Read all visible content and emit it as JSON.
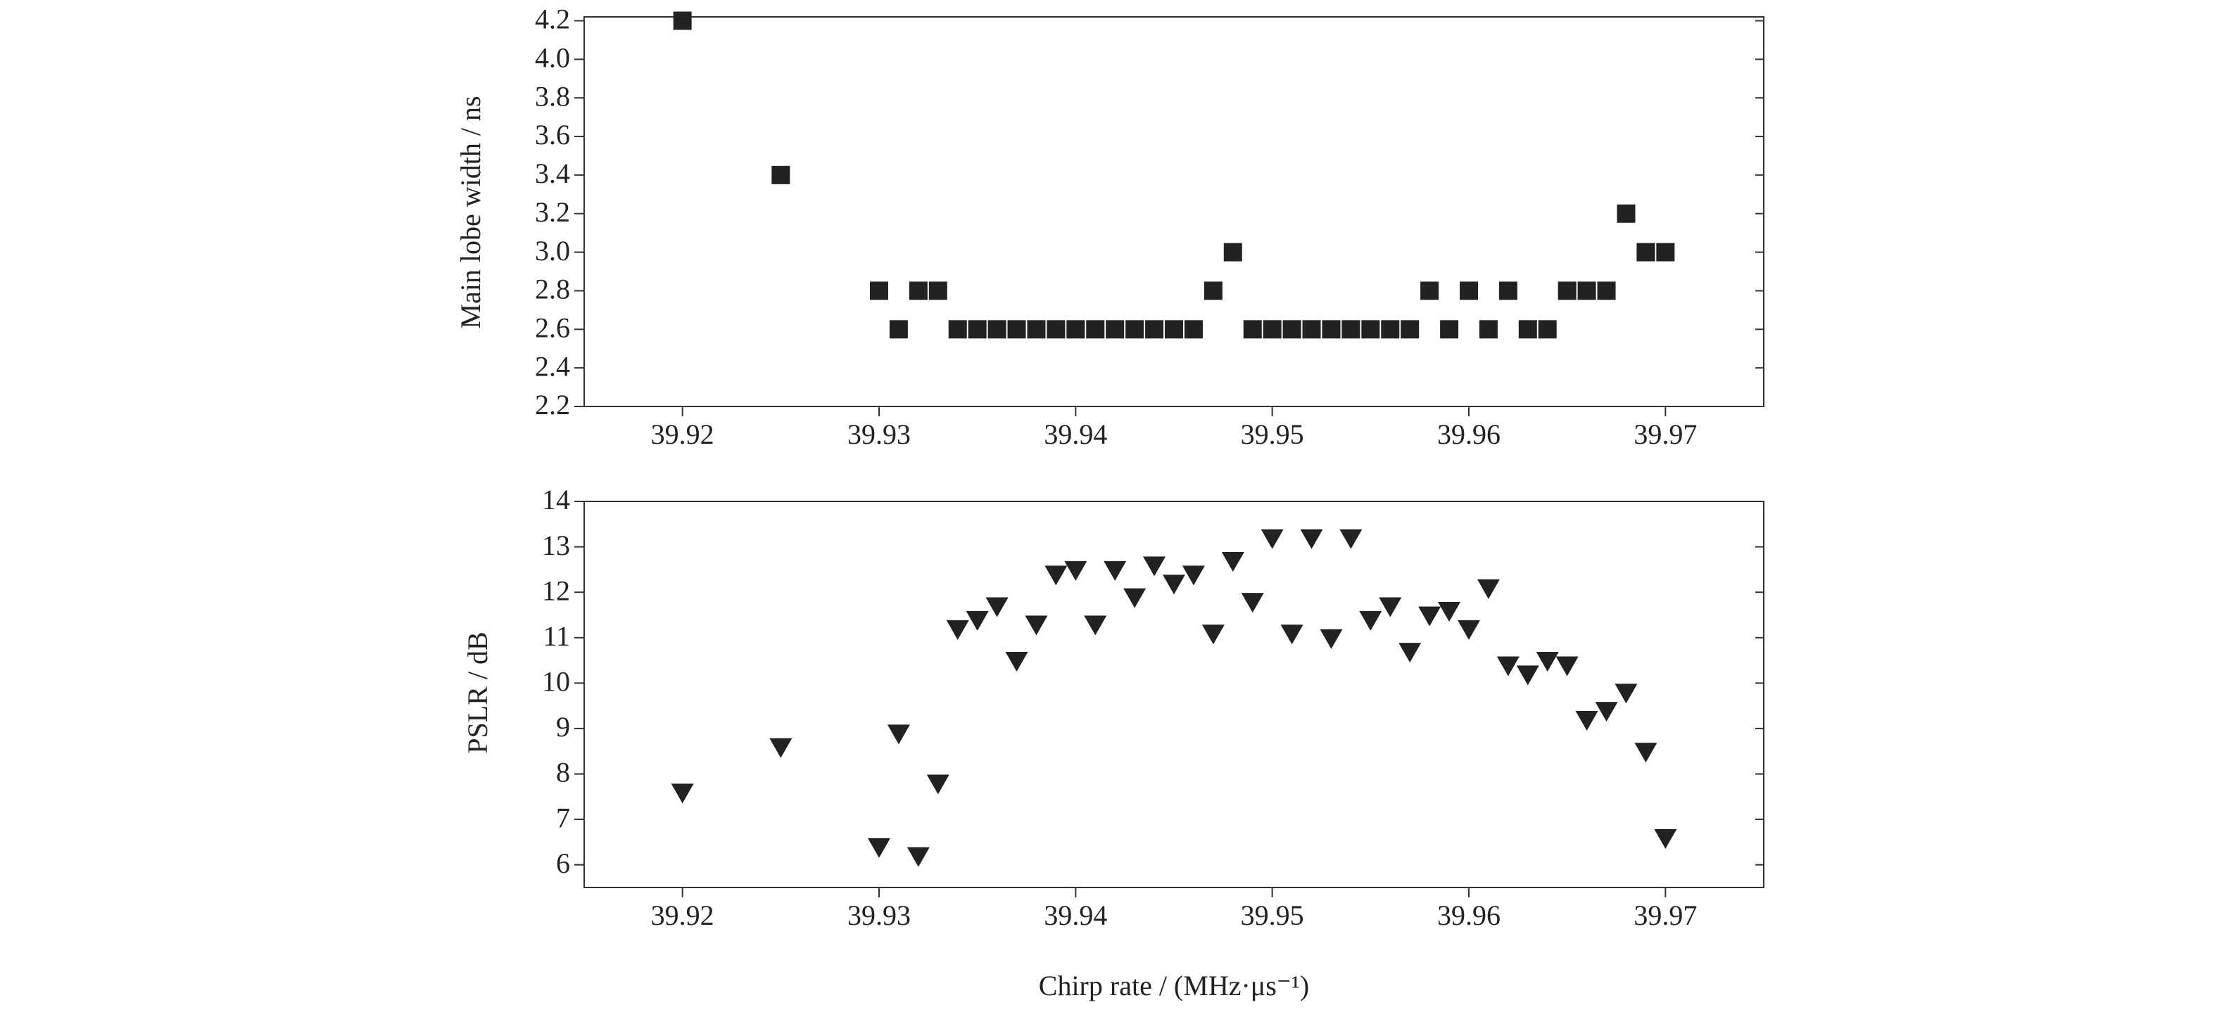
{
  "chart_data": [
    {
      "type": "scatter",
      "ylabel": "Main lobe width / ns",
      "marker": "square",
      "color": "#222222",
      "x": [
        39.92,
        39.925,
        39.93,
        39.931,
        39.932,
        39.933,
        39.934,
        39.935,
        39.936,
        39.937,
        39.938,
        39.939,
        39.94,
        39.941,
        39.942,
        39.943,
        39.944,
        39.945,
        39.946,
        39.947,
        39.948,
        39.949,
        39.95,
        39.951,
        39.952,
        39.953,
        39.954,
        39.955,
        39.956,
        39.957,
        39.958,
        39.959,
        39.96,
        39.961,
        39.962,
        39.963,
        39.964,
        39.965,
        39.966,
        39.967,
        39.968,
        39.969,
        39.97
      ],
      "values": [
        4.2,
        3.4,
        2.8,
        2.6,
        2.8,
        2.8,
        2.6,
        2.6,
        2.6,
        2.6,
        2.6,
        2.6,
        2.6,
        2.6,
        2.6,
        2.6,
        2.6,
        2.6,
        2.6,
        2.8,
        3.0,
        2.6,
        2.6,
        2.6,
        2.6,
        2.6,
        2.6,
        2.6,
        2.6,
        2.6,
        2.8,
        2.6,
        2.8,
        2.6,
        2.8,
        2.6,
        2.6,
        2.8,
        2.8,
        2.8,
        3.2,
        3.0,
        3.0
      ],
      "xlim": [
        39.915,
        39.975
      ],
      "xticks": [
        39.92,
        39.93,
        39.94,
        39.95,
        39.96,
        39.97
      ],
      "ylim": [
        2.2,
        4.22
      ],
      "yticks": [
        2.2,
        2.4,
        2.6,
        2.8,
        {
          "value": 3,
          "label": "3.0"
        },
        3.2,
        3.4,
        3.6,
        3.8,
        {
          "value": 4,
          "label": "4.0"
        },
        4.2
      ]
    },
    {
      "type": "scatter",
      "ylabel": "PSLR / dB",
      "xlabel": "Chirp rate / (MHz·μs⁻¹)",
      "marker": "triangle-down",
      "color": "#222222",
      "x": [
        39.92,
        39.925,
        39.93,
        39.931,
        39.932,
        39.933,
        39.934,
        39.935,
        39.936,
        39.937,
        39.938,
        39.939,
        39.94,
        39.941,
        39.942,
        39.943,
        39.944,
        39.945,
        39.946,
        39.947,
        39.948,
        39.949,
        39.95,
        39.951,
        39.952,
        39.953,
        39.954,
        39.955,
        39.956,
        39.957,
        39.958,
        39.959,
        39.96,
        39.961,
        39.962,
        39.963,
        39.964,
        39.965,
        39.966,
        39.967,
        39.968,
        39.969,
        39.97
      ],
      "values": [
        7.6,
        8.6,
        6.4,
        8.9,
        6.2,
        7.8,
        11.2,
        11.4,
        11.7,
        10.5,
        11.3,
        12.4,
        12.5,
        11.3,
        12.5,
        11.9,
        12.6,
        12.2,
        12.4,
        11.1,
        12.7,
        11.8,
        13.2,
        11.1,
        13.2,
        11.0,
        13.2,
        11.4,
        11.7,
        10.7,
        11.5,
        11.6,
        11.2,
        12.1,
        10.4,
        10.2,
        10.5,
        10.4,
        9.2,
        9.4,
        9.8,
        8.5,
        6.6
      ],
      "xlim": [
        39.915,
        39.975
      ],
      "xticks": [
        39.92,
        39.93,
        39.94,
        39.95,
        39.96,
        39.97
      ],
      "ylim": [
        5.5,
        14
      ],
      "yticks": [
        6,
        7,
        8,
        9,
        10,
        11,
        12,
        13,
        14
      ]
    }
  ]
}
